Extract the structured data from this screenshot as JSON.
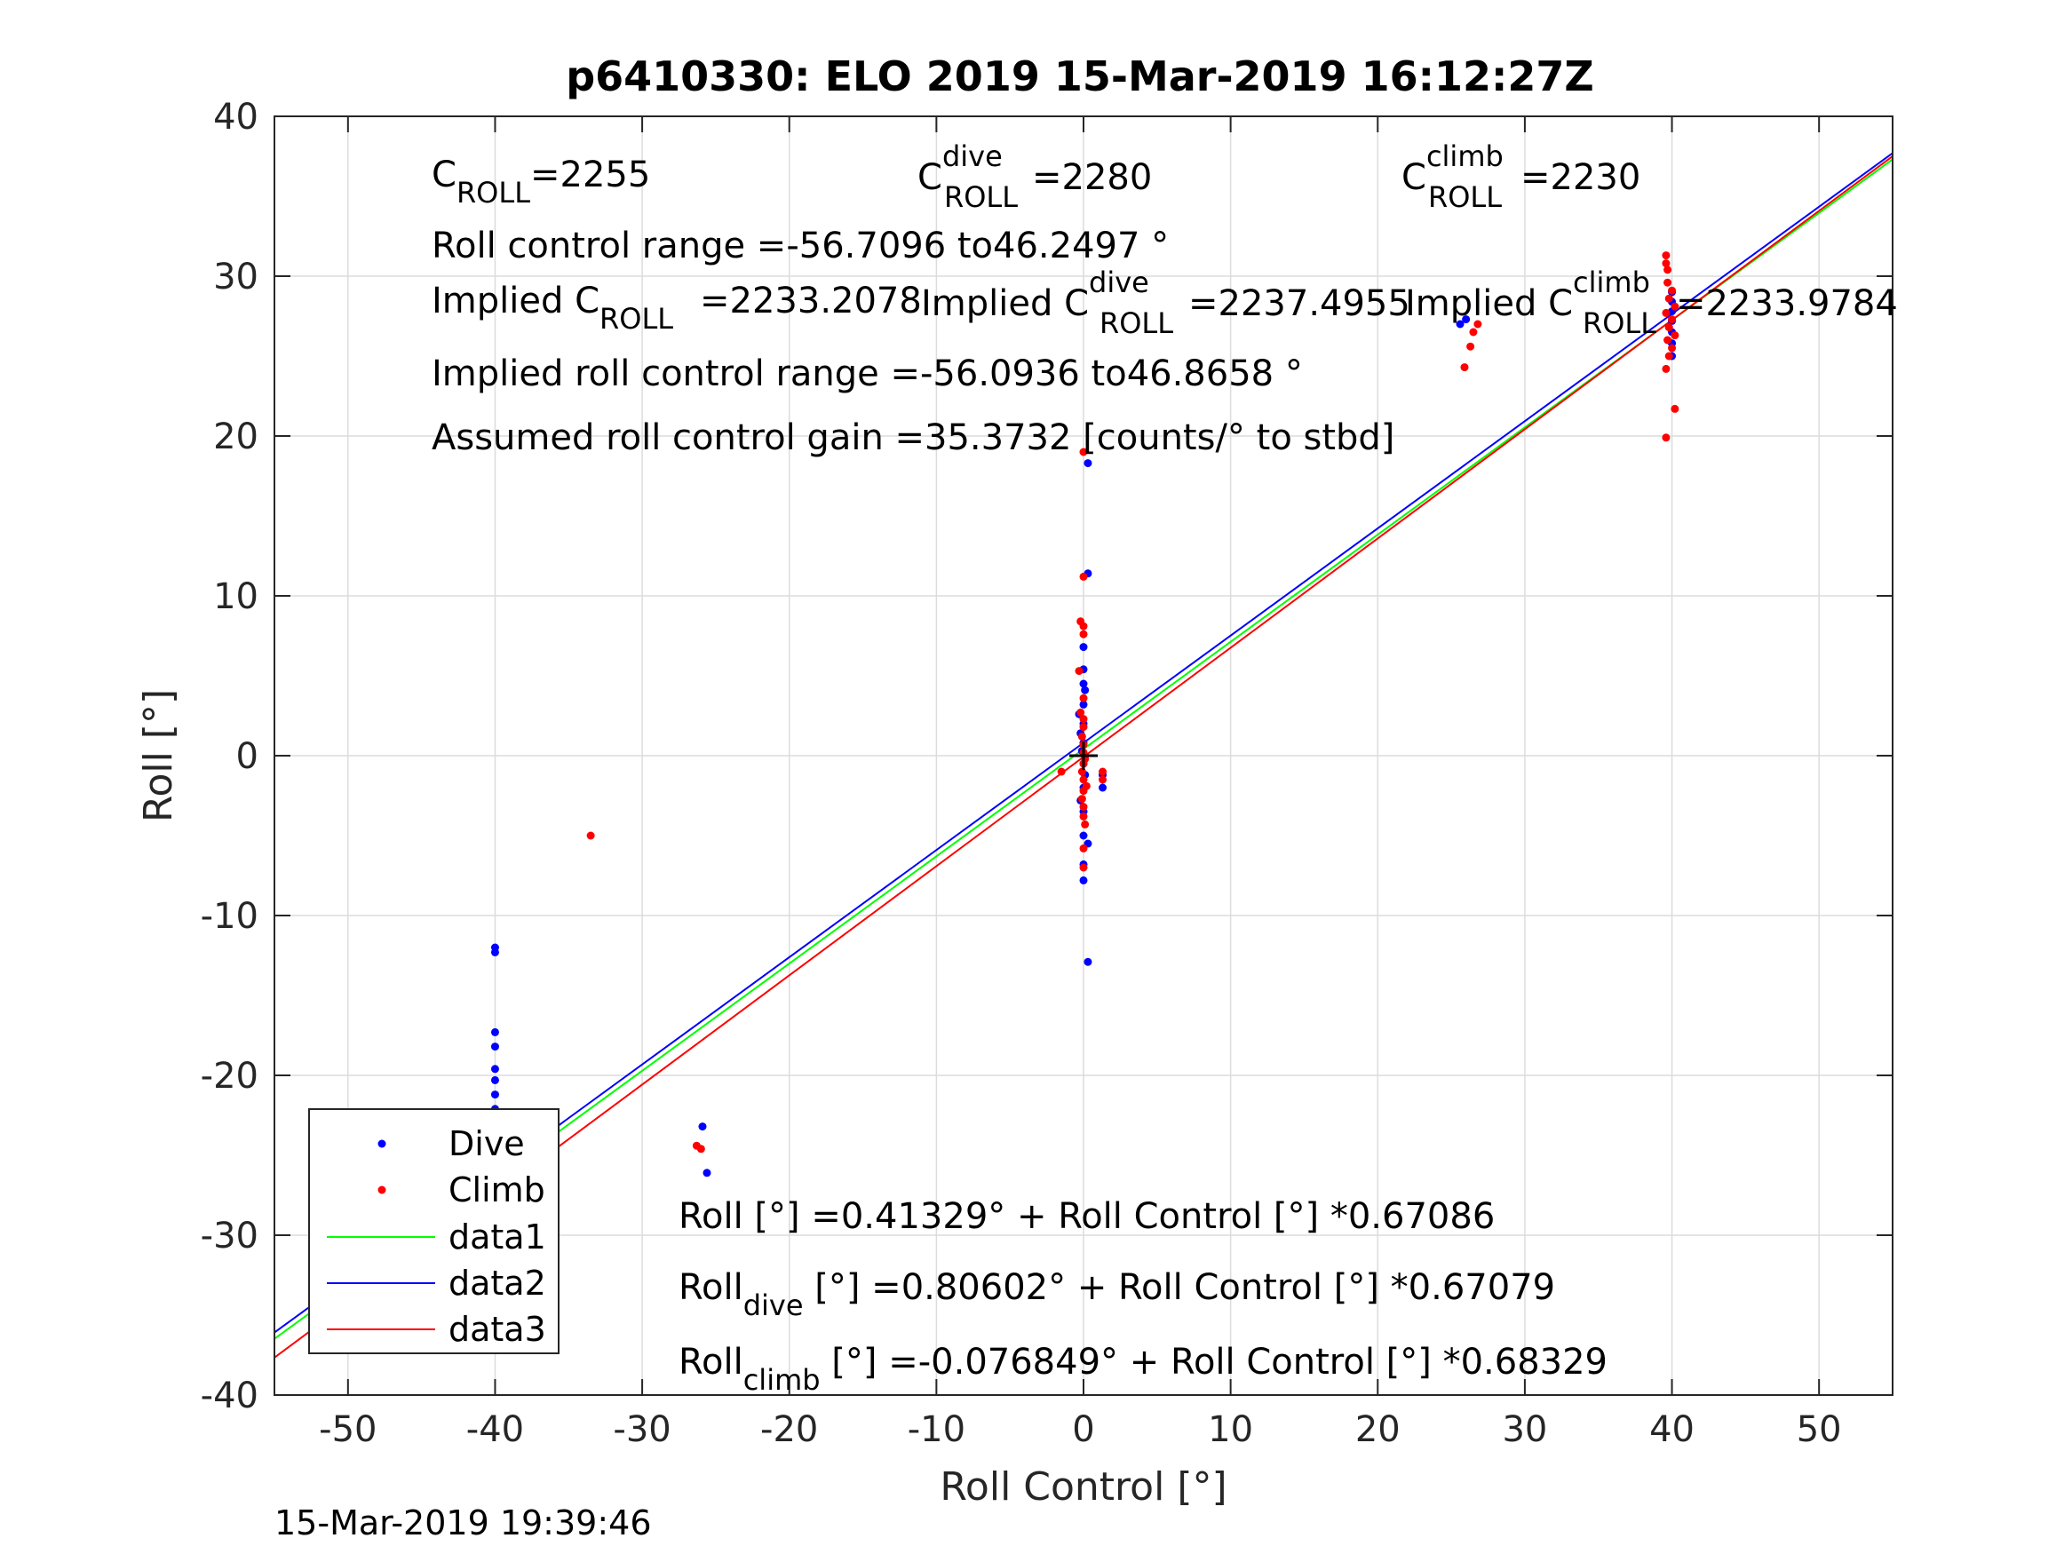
{
  "figure": {
    "timestamp": "15-Mar-2019 19:39:46"
  },
  "chart_data": {
    "type": "scatter",
    "title": "p6410330: ELO 2019 15-Mar-2019 16:12:27Z",
    "xlabel": "Roll Control [°]",
    "ylabel": "Roll [°]",
    "xlim": [
      -55,
      55
    ],
    "ylim": [
      -40,
      40
    ],
    "xticks": [
      -50,
      -40,
      -30,
      -20,
      -10,
      0,
      10,
      20,
      30,
      40,
      50
    ],
    "yticks": [
      -40,
      -30,
      -20,
      -10,
      0,
      10,
      20,
      30,
      40
    ],
    "grid": true,
    "legend_position": "bottom-left",
    "colors": {
      "dive": "#0000ff",
      "climb": "#ff0000",
      "data1": "#00ff00",
      "data2": "#0000ff",
      "data3": "#ff0000",
      "center_mark": "#000000"
    },
    "series": [
      {
        "name": "Dive",
        "style": "points",
        "color": "#0000ff",
        "points": [
          [
            -40,
            -12
          ],
          [
            -40,
            -12.3
          ],
          [
            -40,
            -17.3
          ],
          [
            -40,
            -18.2
          ],
          [
            -40,
            -19.6
          ],
          [
            -40,
            -20.3
          ],
          [
            -40,
            -21.2
          ],
          [
            -40,
            -22.1
          ],
          [
            -40,
            -22.5
          ],
          [
            -40,
            -23
          ],
          [
            -40,
            -23.5
          ],
          [
            -40,
            -24.1
          ],
          [
            -40,
            -24.8
          ],
          [
            -40,
            -25.4
          ],
          [
            -40,
            -26
          ],
          [
            -40,
            -26.7
          ],
          [
            -40,
            -27.3
          ],
          [
            -40,
            -27.9
          ],
          [
            -40,
            -28.5
          ],
          [
            -40,
            -29.2
          ],
          [
            -40,
            -30.1
          ],
          [
            -40,
            -30.8
          ],
          [
            -40,
            -31.2
          ],
          [
            -25.9,
            -23.2
          ],
          [
            -25.6,
            -26.1
          ],
          [
            0,
            -5
          ],
          [
            0,
            -6.8
          ],
          [
            0,
            -7.8
          ],
          [
            0.3,
            -5.5
          ],
          [
            0,
            -3.5
          ],
          [
            -0.2,
            -2.8
          ],
          [
            0,
            -2
          ],
          [
            0.1,
            -1.2
          ],
          [
            0,
            -0.5
          ],
          [
            -0.1,
            0.3
          ],
          [
            0,
            0.8
          ],
          [
            -0.2,
            1.4
          ],
          [
            0,
            2
          ],
          [
            -0.3,
            2.6
          ],
          [
            0,
            3.2
          ],
          [
            0.1,
            4.1
          ],
          [
            0,
            4.5
          ],
          [
            0,
            5.4
          ],
          [
            0,
            6.8
          ],
          [
            0.3,
            11.4
          ],
          [
            0.3,
            18.3
          ],
          [
            0.3,
            -12.9
          ],
          [
            1.3,
            -2
          ],
          [
            1.3,
            -1.2
          ],
          [
            25.6,
            27
          ],
          [
            26,
            27.3
          ],
          [
            40,
            25
          ],
          [
            40,
            25.8
          ],
          [
            40,
            26.5
          ],
          [
            40,
            27.2
          ],
          [
            40,
            27.8
          ],
          [
            40,
            28.4
          ],
          [
            40,
            29
          ]
        ]
      },
      {
        "name": "Climb",
        "style": "points",
        "color": "#ff0000",
        "points": [
          [
            -40,
            -23.4
          ],
          [
            -40,
            -24
          ],
          [
            -40,
            -24.6
          ],
          [
            -40,
            -25.2
          ],
          [
            -40,
            -25.8
          ],
          [
            -40,
            -26.4
          ],
          [
            -40,
            -27
          ],
          [
            -40,
            -27.6
          ],
          [
            -40,
            -28.2
          ],
          [
            -40,
            -28.8
          ],
          [
            -40,
            -29.4
          ],
          [
            -40,
            -30
          ],
          [
            -40.2,
            -30.6
          ],
          [
            -33.5,
            -5
          ],
          [
            -26.3,
            -24.4
          ],
          [
            -26,
            -24.6
          ],
          [
            0,
            -7
          ],
          [
            0,
            -5.8
          ],
          [
            0.1,
            -4.3
          ],
          [
            0,
            -3.8
          ],
          [
            0,
            -3.2
          ],
          [
            -0.1,
            -2.7
          ],
          [
            0,
            -2.2
          ],
          [
            0.2,
            -1.9
          ],
          [
            0,
            -1.5
          ],
          [
            -0.1,
            -1
          ],
          [
            0,
            -0.5
          ],
          [
            0.1,
            -0.2
          ],
          [
            0,
            0.2
          ],
          [
            0,
            0.7
          ],
          [
            -0.1,
            1.2
          ],
          [
            0,
            1.8
          ],
          [
            0,
            2.3
          ],
          [
            -0.2,
            2.7
          ],
          [
            0,
            3.6
          ],
          [
            -0.3,
            5.3
          ],
          [
            0,
            7.6
          ],
          [
            0,
            8.1
          ],
          [
            -0.2,
            8.4
          ],
          [
            0,
            11.2
          ],
          [
            0,
            19
          ],
          [
            1.3,
            -1
          ],
          [
            1.3,
            -1.5
          ],
          [
            -1.5,
            -1
          ],
          [
            25.9,
            24.3
          ],
          [
            26.3,
            25.6
          ],
          [
            26.5,
            26.5
          ],
          [
            26.8,
            27
          ],
          [
            39.6,
            19.9
          ],
          [
            40.2,
            21.7
          ],
          [
            39.6,
            24.2
          ],
          [
            39.8,
            25
          ],
          [
            40,
            25.5
          ],
          [
            39.7,
            26
          ],
          [
            40.2,
            26.3
          ],
          [
            39.8,
            26.8
          ],
          [
            40,
            27.3
          ],
          [
            39.6,
            27.7
          ],
          [
            40.2,
            28.1
          ],
          [
            39.8,
            28.6
          ],
          [
            40,
            29.1
          ],
          [
            39.7,
            29.6
          ],
          [
            39.7,
            30.4
          ],
          [
            39.6,
            30.8
          ],
          [
            39.6,
            31.3
          ]
        ]
      },
      {
        "name": "data1",
        "style": "line",
        "color": "#00ff00",
        "intercept": 0.41329,
        "slope": 0.67086
      },
      {
        "name": "data2",
        "style": "line",
        "color": "#0000ff",
        "intercept": 0.80602,
        "slope": 0.67079
      },
      {
        "name": "data3",
        "style": "line",
        "color": "#ff0000",
        "intercept": -0.076849,
        "slope": 0.68329
      }
    ],
    "center_mark": [
      0,
      0
    ],
    "annotations": {
      "c_roll": {
        "base": "C",
        "sub": "ROLL",
        "value": "=2255"
      },
      "c_roll_dive": {
        "base": "C",
        "sup": "dive",
        "sub": "ROLL",
        "value": "=2280"
      },
      "c_roll_climb": {
        "base": "C",
        "sup": "climb",
        "sub": "ROLL",
        "value": "=2230"
      },
      "roll_control_range": "Roll control range =-56.7096 to46.2497 °",
      "implied_c_roll": {
        "prefix": "Implied C",
        "sub": "ROLL",
        "value": "=2233.2078"
      },
      "implied_c_roll_dive": {
        "prefix": "Implied C",
        "sup": "dive",
        "sub": "ROLL",
        "value": "=2237.4955"
      },
      "implied_c_roll_climb": {
        "prefix": "Implied C",
        "sup": "climb",
        "sub": "ROLL",
        "value": "=2233.9784"
      },
      "implied_roll_control_range": "Implied roll control range =-56.0936 to46.8658 °",
      "assumed_gain": "Assumed roll control gain =35.3732 [counts/° to stbd]",
      "fit_all": {
        "base": "Roll",
        "rest": " [°] =0.41329° + Roll Control [°] *0.67086"
      },
      "fit_dive": {
        "base": "Roll",
        "sub": "dive",
        "rest": " [°] =0.80602° + Roll Control [°] *0.67079"
      },
      "fit_climb": {
        "base": "Roll",
        "sub": "climb",
        "rest": " [°] =-0.076849° + Roll Control [°] *0.68329"
      }
    }
  }
}
